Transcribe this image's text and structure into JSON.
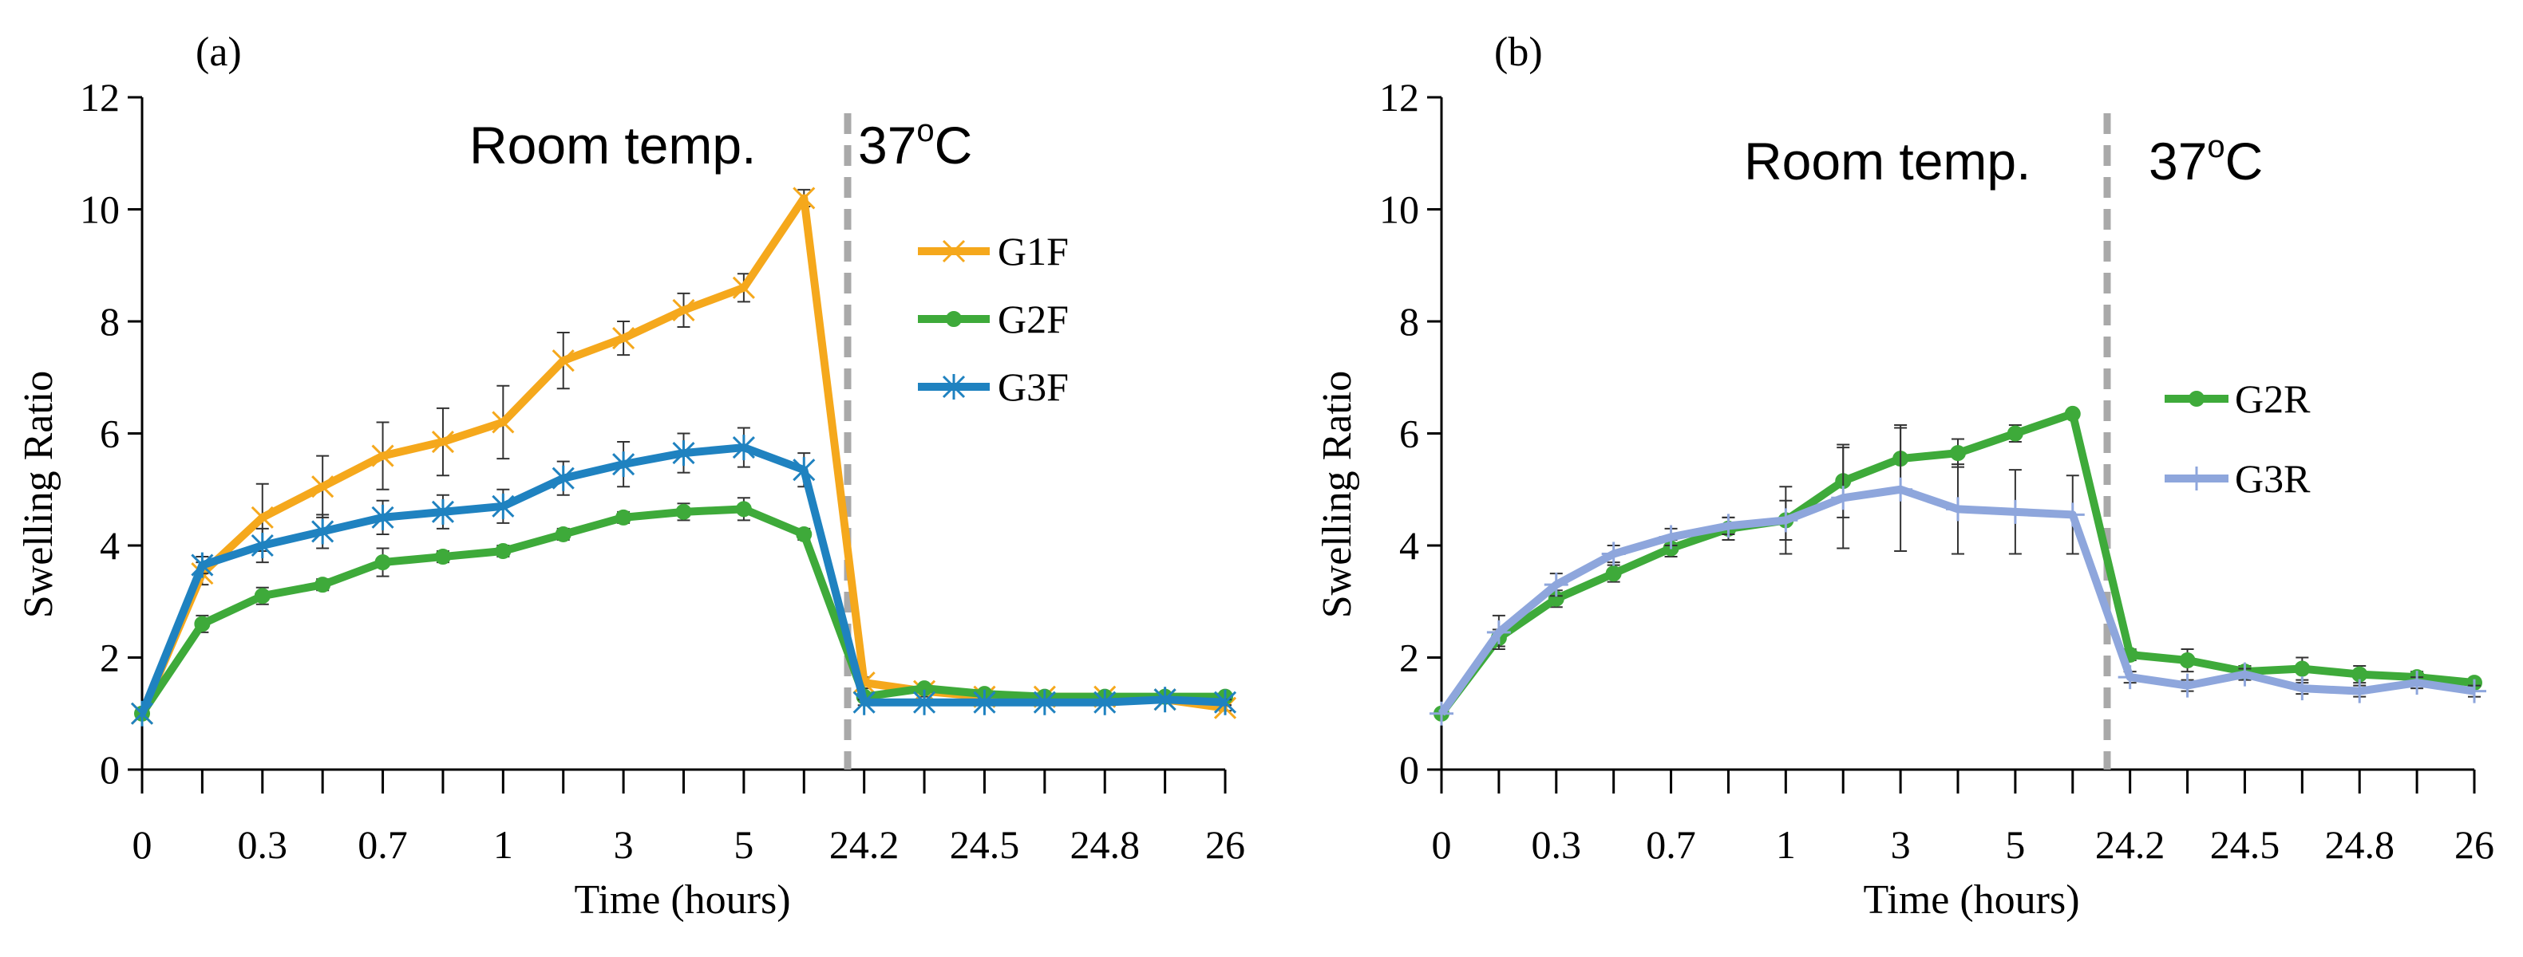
{
  "chart_data": [
    {
      "panel_label": "(a)",
      "type": "line",
      "xlabel": "Time (hours)",
      "ylabel": "Swelling Ratio",
      "ylim": [
        0,
        12
      ],
      "yticks": [
        "0",
        "2",
        "4",
        "6",
        "8",
        "10",
        "12"
      ],
      "x_tick_labels": [
        "0",
        "0.3",
        "0.7",
        "1",
        "3",
        "5",
        "24.2",
        "24.5",
        "24.8",
        "26"
      ],
      "region_labels": {
        "left": "Room temp.",
        "right_base": "37",
        "right_sup": "o",
        "right_unit": "C"
      },
      "legend_position": "right",
      "series": [
        {
          "name": "G1F",
          "color": "#F5A81C",
          "marker": "x",
          "values": [
            1.0,
            3.5,
            4.5,
            5.05,
            5.6,
            5.85,
            6.2,
            7.3,
            7.7,
            8.2,
            8.6,
            10.2,
            1.55,
            1.4,
            1.3,
            1.3,
            1.3,
            1.25,
            1.1
          ],
          "errors": [
            0,
            0.2,
            0.6,
            0.55,
            0.6,
            0.6,
            0.65,
            0.5,
            0.3,
            0.3,
            0.25,
            0.15,
            0.1,
            0.1,
            0.05,
            0.05,
            0.05,
            0.05,
            0.05
          ]
        },
        {
          "name": "G2F",
          "color": "#3EAA3A",
          "marker": "circle",
          "values": [
            1.0,
            2.6,
            3.1,
            3.3,
            3.7,
            3.8,
            3.9,
            4.2,
            4.5,
            4.6,
            4.65,
            4.2,
            1.3,
            1.45,
            1.35,
            1.3,
            1.3,
            1.3,
            1.3
          ],
          "errors": [
            0,
            0.15,
            0.15,
            0.1,
            0.25,
            0.1,
            0.1,
            0.1,
            0.1,
            0.15,
            0.2,
            0.1,
            0.05,
            0.05,
            0.05,
            0.05,
            0.05,
            0.05,
            0.05
          ]
        },
        {
          "name": "G3F",
          "color": "#1F82C0",
          "marker": "asterisk",
          "values": [
            1.0,
            3.65,
            4.0,
            4.25,
            4.5,
            4.6,
            4.7,
            5.2,
            5.45,
            5.65,
            5.75,
            5.35,
            1.2,
            1.2,
            1.2,
            1.2,
            1.2,
            1.25,
            1.2
          ],
          "errors": [
            0,
            0.15,
            0.3,
            0.3,
            0.3,
            0.3,
            0.3,
            0.3,
            0.4,
            0.35,
            0.35,
            0.3,
            0.05,
            0.05,
            0.05,
            0.05,
            0.05,
            0.05,
            0.05
          ]
        }
      ]
    },
    {
      "panel_label": "(b)",
      "type": "line",
      "xlabel": "Time (hours)",
      "ylabel": "Swelling Ratio",
      "ylim": [
        0,
        12
      ],
      "yticks": [
        "0",
        "2",
        "4",
        "6",
        "8",
        "10",
        "12"
      ],
      "x_tick_labels": [
        "0",
        "0.3",
        "0.7",
        "1",
        "3",
        "5",
        "24.2",
        "24.5",
        "24.8",
        "26"
      ],
      "region_labels": {
        "left": "Room temp.",
        "right_base": "37",
        "right_sup": "o",
        "right_unit": "C"
      },
      "legend_position": "right",
      "series": [
        {
          "name": "G2R",
          "color": "#3EAA3A",
          "marker": "circle",
          "values": [
            1.0,
            2.35,
            3.05,
            3.5,
            3.95,
            4.3,
            4.45,
            5.15,
            5.55,
            5.65,
            6.0,
            6.35,
            2.05,
            1.95,
            1.75,
            1.8,
            1.7,
            1.65,
            1.55
          ],
          "errors": [
            0,
            0.15,
            0.15,
            0.15,
            0.15,
            0.2,
            0.35,
            0.65,
            0.6,
            0.25,
            0.15,
            0.05,
            0.1,
            0.2,
            0.1,
            0.2,
            0.15,
            0.1,
            0.05
          ]
        },
        {
          "name": "G3R",
          "color": "#8EA6DC",
          "marker": "plus",
          "values": [
            1.0,
            2.45,
            3.3,
            3.85,
            4.15,
            4.35,
            4.45,
            4.85,
            5.0,
            4.65,
            4.6,
            4.55,
            1.65,
            1.5,
            1.7,
            1.45,
            1.4,
            1.55,
            1.4
          ],
          "errors": [
            0,
            0.3,
            0.2,
            0.15,
            0.15,
            0.15,
            0.6,
            0.9,
            1.1,
            0.8,
            0.75,
            0.7,
            0.1,
            0.1,
            0.1,
            0.1,
            0.1,
            0.1,
            0.1
          ]
        }
      ]
    }
  ]
}
